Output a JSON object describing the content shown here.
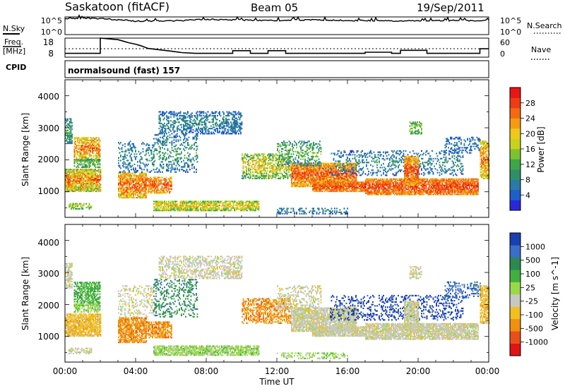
{
  "header": {
    "station": "Saskatoon (fitACF)",
    "beam": "Beam 05",
    "date": "19/Sep/2011"
  },
  "labels": {
    "nsky": "N.Sky",
    "nsky_top": "10^5",
    "nsky_bottom": "10^0",
    "freq_line1": "Freq.",
    "freq_line2": "[MHz]",
    "freq_top": "18",
    "freq_bottom": "8",
    "cpid": "CPID",
    "nsearch": "N.Search",
    "nsearch_top": "10^5",
    "nsearch_bottom": "10^0",
    "nave": "Nave",
    "nave_top": "60",
    "nave_bottom": "0",
    "cpid_value": "normalsound (fast) 157"
  },
  "chart_data": [
    {
      "type": "line",
      "name": "noise-panel",
      "x": [
        "00:00",
        "02:00",
        "04:00",
        "06:00",
        "08:00",
        "10:00",
        "12:00",
        "14:00",
        "16:00",
        "18:00",
        "20:00",
        "22:00",
        "24:00"
      ],
      "series": [
        {
          "values": [
            4.6,
            4.6,
            3.8,
            3.9,
            4.3,
            4.1,
            4.0,
            4.2,
            4.0,
            3.9,
            3.9,
            4.0,
            4.0
          ]
        }
      ],
      "ylim": [
        0,
        5
      ]
    },
    {
      "type": "line",
      "name": "freq-panel",
      "freq_steps": [
        [
          0,
          10.0
        ],
        [
          2.0,
          10.0
        ],
        [
          2.0,
          18.0
        ],
        [
          3.0,
          17.2
        ],
        [
          3.3,
          16.4
        ],
        [
          3.6,
          15.6
        ],
        [
          4.0,
          14.8
        ],
        [
          4.3,
          14.0
        ],
        [
          4.7,
          12.6
        ],
        [
          5.4,
          11.8
        ],
        [
          6.0,
          11.2
        ],
        [
          6.6,
          10.4
        ],
        [
          7.4,
          10.0
        ],
        [
          9.5,
          10.0
        ],
        [
          9.5,
          11.4
        ],
        [
          10.5,
          11.4
        ],
        [
          10.5,
          10.0
        ],
        [
          11.5,
          10.0
        ],
        [
          11.5,
          11.4
        ],
        [
          12.5,
          11.4
        ],
        [
          12.5,
          10.0
        ],
        [
          17.0,
          10.0
        ],
        [
          17.0,
          10.6
        ],
        [
          18.5,
          10.6
        ],
        [
          18.5,
          10.0
        ],
        [
          19.0,
          10.0
        ],
        [
          19.0,
          11.6
        ],
        [
          20.5,
          11.6
        ],
        [
          20.5,
          10.0
        ],
        [
          23.5,
          10.0
        ],
        [
          23.5,
          12.4
        ],
        [
          24.0,
          12.4
        ]
      ],
      "reference_freq": 11.4,
      "ylim": [
        8,
        18
      ]
    },
    {
      "type": "heatmap",
      "name": "power-panel",
      "xlabel": "Time UT",
      "ylabel": "Slant Range [km]",
      "yticks": [
        "1000",
        "2000",
        "3000",
        "4000"
      ],
      "xticks": [
        "00:00",
        "04:00",
        "08:00",
        "12:00",
        "16:00",
        "20:00",
        "00:00"
      ],
      "colorbar": {
        "label": "Power [dB]",
        "ticks": [
          "4",
          "8",
          "12",
          "16",
          "20",
          "24",
          "28"
        ]
      }
    },
    {
      "type": "heatmap",
      "name": "velocity-panel",
      "xlabel": "Time UT",
      "ylabel": "Slant Range [km]",
      "yticks": [
        "1000",
        "2000",
        "3000",
        "4000"
      ],
      "xticks": [
        "00:00",
        "04:00",
        "08:00",
        "12:00",
        "16:00",
        "20:00",
        "00:00"
      ],
      "colorbar": {
        "label": "Velocity [m s^-1]",
        "ticks": [
          "1000",
          "500",
          "100",
          "25",
          "-25",
          "-100",
          "-500",
          "-1000"
        ]
      }
    }
  ],
  "colors": {
    "power": [
      "#2828d8",
      "#1e5fc8",
      "#2a7aa8",
      "#2f9068",
      "#3fa548",
      "#7ec232",
      "#c8d21e",
      "#f0c81a",
      "#f59a14",
      "#f26a12",
      "#ee3c14",
      "#e81616"
    ],
    "velocity": [
      "#1a3fb0",
      "#3a6ec8",
      "#2c8a50",
      "#40b040",
      "#9ad84a",
      "#c8c8c2",
      "#f0c020",
      "#f09010",
      "#e8501a",
      "#e01414"
    ]
  }
}
